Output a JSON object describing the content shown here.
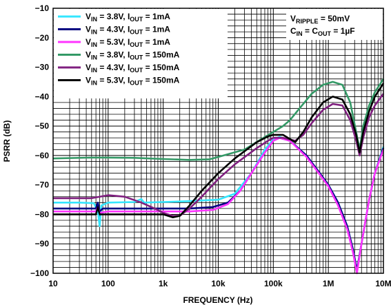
{
  "chart_data": {
    "type": "line",
    "xlabel": "FREQUENCY (Hz)",
    "ylabel": "PSRR (dB)",
    "x_scale": "log",
    "xlim": [
      10,
      10000000
    ],
    "ylim": [
      -100,
      -10
    ],
    "grid": true,
    "legend_position": "top-left",
    "x_ticks": [
      {
        "value": 10,
        "label": "10"
      },
      {
        "value": 100,
        "label": "100"
      },
      {
        "value": 1000,
        "label": "1k"
      },
      {
        "value": 10000,
        "label": "10k"
      },
      {
        "value": 100000,
        "label": "100k"
      },
      {
        "value": 1000000,
        "label": "1M"
      },
      {
        "value": 10000000,
        "label": "10M"
      }
    ],
    "y_ticks": [
      {
        "value": -10,
        "label": "−10"
      },
      {
        "value": -20,
        "label": "−20"
      },
      {
        "value": -30,
        "label": "−30"
      },
      {
        "value": -40,
        "label": "−40"
      },
      {
        "value": -50,
        "label": "−50"
      },
      {
        "value": -60,
        "label": "−60"
      },
      {
        "value": -70,
        "label": "−70"
      },
      {
        "value": -80,
        "label": "−80"
      },
      {
        "value": -90,
        "label": "−90"
      },
      {
        "value": -100,
        "label": "−100"
      }
    ],
    "conditions": [
      {
        "main": "V",
        "sub": "RIPPLE",
        "rest": " = 50mV"
      },
      {
        "parts": [
          {
            "t": "C"
          },
          {
            "t": "IN",
            "sub": true
          },
          {
            "t": " = C"
          },
          {
            "t": "OUT",
            "sub": true
          },
          {
            "t": " = 1µF"
          }
        ]
      }
    ],
    "series": [
      {
        "legend": [
          {
            "t": "V"
          },
          {
            "t": "IN",
            "sub": true
          },
          {
            "t": " = 3.8V, I"
          },
          {
            "t": "OUT",
            "sub": true
          },
          {
            "t": " = 1mA"
          }
        ],
        "color": "#33e6ff",
        "points": [
          [
            10,
            -76
          ],
          [
            30,
            -76
          ],
          [
            55,
            -76.2
          ],
          [
            65,
            -79
          ],
          [
            70,
            -84
          ],
          [
            75,
            -77
          ],
          [
            100,
            -76
          ],
          [
            300,
            -75.8
          ],
          [
            400,
            -74.8
          ],
          [
            450,
            -76
          ],
          [
            1000,
            -75.8
          ],
          [
            3000,
            -75.5
          ],
          [
            10000,
            -75
          ],
          [
            20000,
            -73
          ],
          [
            40000,
            -66
          ],
          [
            70000,
            -58
          ],
          [
            100000,
            -54.5
          ],
          [
            130000,
            -53.7
          ],
          [
            200000,
            -55
          ],
          [
            400000,
            -60
          ],
          [
            700000,
            -66
          ],
          [
            1000000,
            -70
          ],
          [
            1500000,
            -76
          ],
          [
            2200000,
            -84
          ],
          [
            2800000,
            -92
          ],
          [
            3300000,
            -99
          ],
          [
            4000000,
            -90
          ],
          [
            5500000,
            -75
          ],
          [
            7000000,
            -66
          ],
          [
            10000000,
            -57
          ]
        ]
      },
      {
        "legend": [
          {
            "t": "V"
          },
          {
            "t": "IN",
            "sub": true
          },
          {
            "t": " = 4.3V, I"
          },
          {
            "t": "OUT",
            "sub": true
          },
          {
            "t": " = 1mA"
          }
        ],
        "color": "#000080",
        "points": [
          [
            10,
            -78
          ],
          [
            50,
            -78
          ],
          [
            60,
            -78
          ],
          [
            65,
            -76
          ],
          [
            70,
            -79
          ],
          [
            80,
            -78
          ],
          [
            100,
            -78
          ],
          [
            1000,
            -78
          ],
          [
            3000,
            -78
          ],
          [
            8000,
            -77.5
          ],
          [
            15000,
            -76
          ],
          [
            25000,
            -72
          ],
          [
            40000,
            -66
          ],
          [
            70000,
            -59
          ],
          [
            100000,
            -55
          ],
          [
            130000,
            -54
          ],
          [
            200000,
            -55
          ],
          [
            400000,
            -60
          ],
          [
            700000,
            -66
          ],
          [
            1000000,
            -70
          ],
          [
            1500000,
            -76
          ],
          [
            2200000,
            -84
          ],
          [
            2800000,
            -92
          ],
          [
            3300000,
            -99
          ],
          [
            4000000,
            -90
          ],
          [
            5500000,
            -75
          ],
          [
            7000000,
            -66
          ],
          [
            10000000,
            -57.5
          ]
        ]
      },
      {
        "legend": [
          {
            "t": "V"
          },
          {
            "t": "IN",
            "sub": true
          },
          {
            "t": " = 5.3V, I"
          },
          {
            "t": "OUT",
            "sub": true
          },
          {
            "t": " = 1mA"
          }
        ],
        "color": "#ff33ff",
        "points": [
          [
            10,
            -79
          ],
          [
            60,
            -79
          ],
          [
            65,
            -77.5
          ],
          [
            70,
            -79.5
          ],
          [
            100,
            -79
          ],
          [
            1000,
            -79
          ],
          [
            3000,
            -79
          ],
          [
            8000,
            -78.5
          ],
          [
            15000,
            -76.5
          ],
          [
            25000,
            -72
          ],
          [
            40000,
            -66
          ],
          [
            70000,
            -59
          ],
          [
            100000,
            -55
          ],
          [
            130000,
            -54
          ],
          [
            200000,
            -55
          ],
          [
            400000,
            -60.5
          ],
          [
            700000,
            -66.5
          ],
          [
            1000000,
            -70.5
          ],
          [
            1500000,
            -77
          ],
          [
            2200000,
            -85
          ],
          [
            2800000,
            -93
          ],
          [
            3300000,
            -100
          ],
          [
            4000000,
            -90
          ],
          [
            5500000,
            -75
          ],
          [
            7000000,
            -66
          ],
          [
            10000000,
            -58
          ]
        ]
      },
      {
        "legend": [
          {
            "t": "V"
          },
          {
            "t": "IN",
            "sub": true
          },
          {
            "t": " = 3.8V, I"
          },
          {
            "t": "OUT",
            "sub": true
          },
          {
            "t": " = 150mA"
          }
        ],
        "color": "#339966",
        "points": [
          [
            10,
            -61
          ],
          [
            50,
            -60.7
          ],
          [
            100,
            -60.7
          ],
          [
            300,
            -60.8
          ],
          [
            1000,
            -61.2
          ],
          [
            3000,
            -61.5
          ],
          [
            7000,
            -61.3
          ],
          [
            10000,
            -60.5
          ],
          [
            30000,
            -58
          ],
          [
            60000,
            -54.5
          ],
          [
            100000,
            -52
          ],
          [
            150000,
            -50
          ],
          [
            200000,
            -48
          ],
          [
            300000,
            -44
          ],
          [
            500000,
            -39
          ],
          [
            800000,
            -36
          ],
          [
            1200000,
            -35
          ],
          [
            1800000,
            -36
          ],
          [
            2500000,
            -42
          ],
          [
            3200000,
            -52
          ],
          [
            3700000,
            -58
          ],
          [
            4300000,
            -50
          ],
          [
            5500000,
            -43
          ],
          [
            7000000,
            -38.5
          ],
          [
            10000000,
            -34
          ]
        ]
      },
      {
        "legend": [
          {
            "t": "V"
          },
          {
            "t": "IN",
            "sub": true
          },
          {
            "t": " = 4.3V, I"
          },
          {
            "t": "OUT",
            "sub": true
          },
          {
            "t": " = 150mA"
          }
        ],
        "color": "#7f1f7f",
        "points": [
          [
            10,
            -74.5
          ],
          [
            50,
            -74.5
          ],
          [
            100,
            -73.5
          ],
          [
            200,
            -74
          ],
          [
            400,
            -76
          ],
          [
            700,
            -78
          ],
          [
            1000,
            -79.5
          ],
          [
            1500,
            -80.5
          ],
          [
            2000,
            -80.5
          ],
          [
            3000,
            -78
          ],
          [
            5000,
            -74
          ],
          [
            10000,
            -68
          ],
          [
            20000,
            -63
          ],
          [
            50000,
            -57.5
          ],
          [
            80000,
            -55
          ],
          [
            100000,
            -54
          ],
          [
            150000,
            -54
          ],
          [
            250000,
            -55
          ],
          [
            350000,
            -53
          ],
          [
            500000,
            -49
          ],
          [
            800000,
            -44.5
          ],
          [
            1200000,
            -42.5
          ],
          [
            1800000,
            -43
          ],
          [
            2500000,
            -48
          ],
          [
            3200000,
            -55
          ],
          [
            3700000,
            -60
          ],
          [
            4300000,
            -54
          ],
          [
            5500000,
            -47
          ],
          [
            7000000,
            -43
          ],
          [
            10000000,
            -39
          ]
        ]
      },
      {
        "legend": [
          {
            "t": "V"
          },
          {
            "t": "IN",
            "sub": true
          },
          {
            "t": " = 5.3V, I"
          },
          {
            "t": "OUT",
            "sub": true
          },
          {
            "t": " = 150mA"
          }
        ],
        "color": "#000000",
        "points": [
          [
            10,
            -80
          ],
          [
            50,
            -80
          ],
          [
            60,
            -80
          ],
          [
            65,
            -77.5
          ],
          [
            70,
            -80
          ],
          [
            100,
            -80
          ],
          [
            300,
            -80
          ],
          [
            1000,
            -80
          ],
          [
            1500,
            -81
          ],
          [
            2000,
            -80.5
          ],
          [
            3000,
            -77
          ],
          [
            5000,
            -72
          ],
          [
            10000,
            -66
          ],
          [
            20000,
            -61
          ],
          [
            50000,
            -55.5
          ],
          [
            80000,
            -53.5
          ],
          [
            100000,
            -53
          ],
          [
            150000,
            -53
          ],
          [
            250000,
            -55.5
          ],
          [
            350000,
            -52
          ],
          [
            500000,
            -47
          ],
          [
            800000,
            -42
          ],
          [
            1200000,
            -40
          ],
          [
            1800000,
            -41
          ],
          [
            2500000,
            -46
          ],
          [
            3200000,
            -53
          ],
          [
            3700000,
            -59
          ],
          [
            4300000,
            -52
          ],
          [
            5500000,
            -45
          ],
          [
            7000000,
            -40
          ],
          [
            10000000,
            -35.5
          ]
        ]
      }
    ]
  }
}
